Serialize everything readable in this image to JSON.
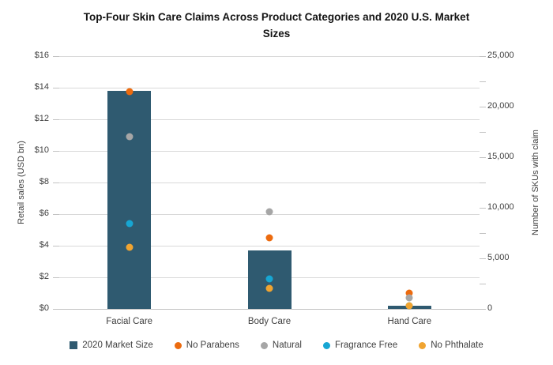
{
  "chart_data": {
    "type": "combo bar + scatter, dual y-axis",
    "title": "Top-Four Skin Care Claims Across Product Categories and 2020 U.S. Market Sizes",
    "categories": [
      "Facial Care",
      "Body Care",
      "Hand Care"
    ],
    "bar_series": {
      "name": "2020 Market Size",
      "axis": "left",
      "unit": "USD bn",
      "color": "#2F5A70",
      "values": [
        13.8,
        3.7,
        0.2
      ]
    },
    "point_series": [
      {
        "name": "No Parabens",
        "axis": "right",
        "color": "#EC6B0F",
        "values": [
          21500,
          7000,
          1550
        ]
      },
      {
        "name": "Natural",
        "axis": "right",
        "color": "#A6A6A6",
        "values": [
          17000,
          9600,
          1100
        ]
      },
      {
        "name": "Fragrance Free",
        "axis": "right",
        "color": "#17A6D3",
        "values": [
          8400,
          2950,
          300
        ]
      },
      {
        "name": "No Phthalate",
        "axis": "right",
        "color": "#F0A431",
        "values": [
          6100,
          2050,
          300
        ]
      }
    ],
    "left_axis": {
      "label": "Retail sales (USD bn)",
      "min": 0,
      "max": 16,
      "tick_step": 2,
      "tick_labels_top_to_bottom": [
        "$16",
        "$14",
        "$12",
        "$10",
        "$8",
        "$6",
        "$4",
        "$2",
        "$0"
      ]
    },
    "right_axis": {
      "label": "Number of SKUs with claim",
      "min": 0,
      "max": 25000,
      "tick_step": 5000,
      "minor_tick_step": 2500,
      "tick_labels_top_to_bottom": [
        "25,000",
        "20,000",
        "15,000",
        "10,000",
        "5,000",
        "0"
      ]
    },
    "grid": "horizontal gridlines every $2",
    "legend_position": "bottom"
  },
  "colors": {
    "background": "#FFFFFF",
    "gridline": "#D9D9D9",
    "axis_line": "#C3C3C3",
    "text": "#404040",
    "title_text": "#141414"
  }
}
